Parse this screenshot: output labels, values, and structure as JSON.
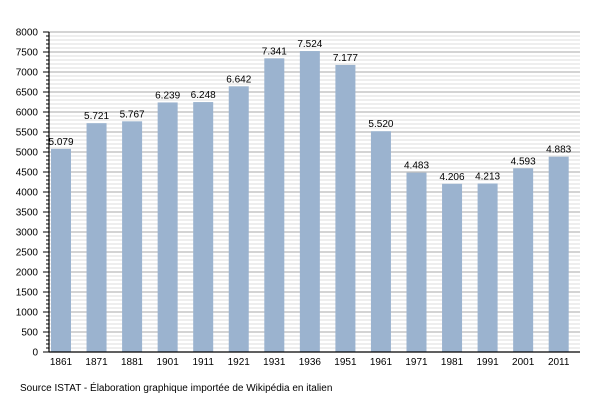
{
  "chart_data": {
    "type": "bar",
    "categories": [
      "1861",
      "1871",
      "1881",
      "1901",
      "1911",
      "1921",
      "1931",
      "1936",
      "1951",
      "1961",
      "1971",
      "1981",
      "1991",
      "2001",
      "2011"
    ],
    "values": [
      5079,
      5721,
      5767,
      6239,
      6248,
      6642,
      7341,
      7524,
      7177,
      5520,
      4483,
      4206,
      4213,
      4593,
      4883
    ],
    "data_labels": [
      "5.079",
      "5.721",
      "5.767",
      "6.239",
      "6.248",
      "6.642",
      "7.341",
      "7.524",
      "7.177",
      "5.520",
      "4.483",
      "4.206",
      "4.213",
      "4.593",
      "4.883"
    ],
    "yticks": [
      "0",
      "500",
      "1000",
      "1500",
      "2000",
      "2500",
      "3000",
      "3500",
      "4000",
      "4500",
      "5000",
      "5500",
      "6000",
      "6500",
      "7000",
      "7500",
      "8000"
    ],
    "ylim": [
      0,
      8000
    ],
    "grid": true,
    "bar_color": "#9bb3cf",
    "source": "Source ISTAT - Élaboration graphique importée de Wikipédia en italien"
  }
}
